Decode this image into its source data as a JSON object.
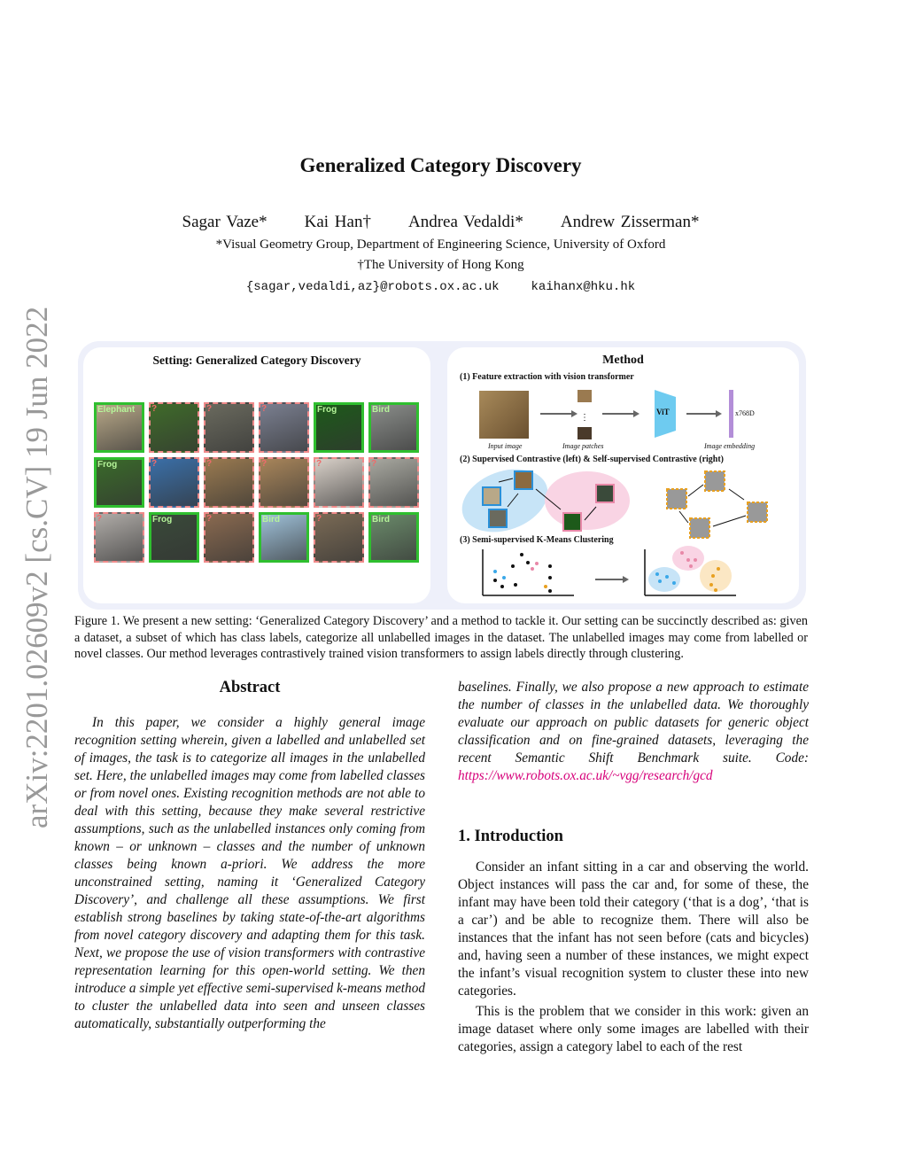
{
  "title": "Generalized Category Discovery",
  "authors": [
    "Sagar Vaze*",
    "Kai Han†",
    "Andrea Vedaldi*",
    "Andrew Zisserman*"
  ],
  "affiliations": [
    "*Visual Geometry Group, Department of Engineering Science, University of Oxford",
    "†The University of Hong Kong"
  ],
  "emails": [
    "{sagar,vedaldi,az}@robots.ox.ac.uk",
    "kaihanx@hku.hk"
  ],
  "arxiv_stamp": "arXiv:2201.02609v2  [cs.CV]  19 Jun 2022",
  "figure": {
    "setting_title": "Setting: Generalized Category Discovery",
    "grid": [
      {
        "label": "Elephant",
        "labelled": true,
        "color": "#b8a888"
      },
      {
        "label": "?",
        "labelled": false,
        "color": "#3f6b2a"
      },
      {
        "label": "?",
        "labelled": false,
        "color": "#6a6a5e"
      },
      {
        "label": "?",
        "labelled": false,
        "color": "#7a7f90"
      },
      {
        "label": "Frog",
        "labelled": true,
        "color": "#1d5a1a"
      },
      {
        "label": "Bird",
        "labelled": true,
        "color": "#8a8d8a"
      },
      {
        "label": "Frog",
        "labelled": true,
        "color": "#3a6a2a"
      },
      {
        "label": "?",
        "labelled": false,
        "color": "#3a6fa8"
      },
      {
        "label": "?",
        "labelled": false,
        "color": "#9a7a50"
      },
      {
        "label": "?",
        "labelled": false,
        "color": "#a8855a"
      },
      {
        "label": "?",
        "labelled": false,
        "color": "#d8d0c8"
      },
      {
        "label": "?",
        "labelled": false,
        "color": "#a8a8a0"
      },
      {
        "label": "?",
        "labelled": false,
        "color": "#b0aca8"
      },
      {
        "label": "Frog",
        "labelled": true,
        "color": "#3a4a3a"
      },
      {
        "label": "?",
        "labelled": false,
        "color": "#8a6a50"
      },
      {
        "label": "Bird",
        "labelled": true,
        "color": "#9ec0d8"
      },
      {
        "label": "?",
        "labelled": false,
        "color": "#7a6a55"
      },
      {
        "label": "Bird",
        "labelled": true,
        "color": "#6a8a6a"
      }
    ],
    "method_title": "Method",
    "step1": "(1) Feature extraction with vision transformer",
    "input_image": "Input image",
    "image_patches": "Image patches",
    "vit": "ViT",
    "dim": "x768D",
    "image_embedding": "Image embedding",
    "step2": "(2) Supervised Contrastive (left) & Self-supervised Contrastive (right)",
    "step3": "(3) Semi-supervised K-Means Clustering",
    "colors": {
      "labelled": "#2fbf2f",
      "unlabelled": "#f08a8a",
      "vit": "#6ecbf0",
      "embedding": "#b38ed8",
      "blue_cluster": "#c7e4f7",
      "pink_cluster": "#f9d4e4",
      "orange_cluster": "#fbe7c4"
    }
  },
  "caption": "Figure 1. We present a new setting: ‘Generalized Category Discovery’ and a method to tackle it. Our setting can be succinctly described as: given a dataset, a subset of which has class labels, categorize all unlabelled images in the dataset. The unlabelled images may come from labelled or novel classes. Our method leverages contrastively trained vision transformers to assign labels directly through clustering.",
  "abstract": {
    "heading": "Abstract",
    "text": "In this paper, we consider a highly general image recognition setting wherein, given a labelled and unlabelled set of images, the task is to categorize all images in the unlabelled set. Here, the unlabelled images may come from labelled classes or from novel ones. Existing recognition methods are not able to deal with this setting, because they make several restrictive assumptions, such as the unlabelled instances only coming from known – or unknown – classes and the number of unknown classes being known a-priori. We address the more unconstrained setting, naming it ‘Generalized Category Discovery’, and challenge all these assumptions. We first establish strong baselines by taking state-of-the-art algorithms from novel category discovery and adapting them for this task. Next, we propose the use of vision transformers with contrastive representation learning for this open-world setting. We then introduce a simple yet effective semi-supervised k-means method to cluster the unlabelled data into seen and unseen classes automatically, substantially outperforming the",
    "continued": "baselines. Finally, we also propose a new approach to estimate the number of classes in the unlabelled data. We thoroughly evaluate our approach on public datasets for generic object classification and on fine-grained datasets, leveraging the recent Semantic Shift Benchmark suite. Code:",
    "link": "https://www.robots.ox.ac.uk/~vgg/research/gcd"
  },
  "intro": {
    "heading": "1. Introduction",
    "p1": "Consider an infant sitting in a car and observing the world. Object instances will pass the car and, for some of these, the infant may have been told their category (‘that is a dog’, ‘that is a car’) and be able to recognize them. There will also be instances that the infant has not seen before (cats and bicycles) and, having seen a number of these instances, we might expect the infant’s visual recognition system to cluster these into new categories.",
    "p2": "This is the problem that we consider in this work: given an image dataset where only some images are labelled with their categories, assign a category label to each of the rest"
  }
}
